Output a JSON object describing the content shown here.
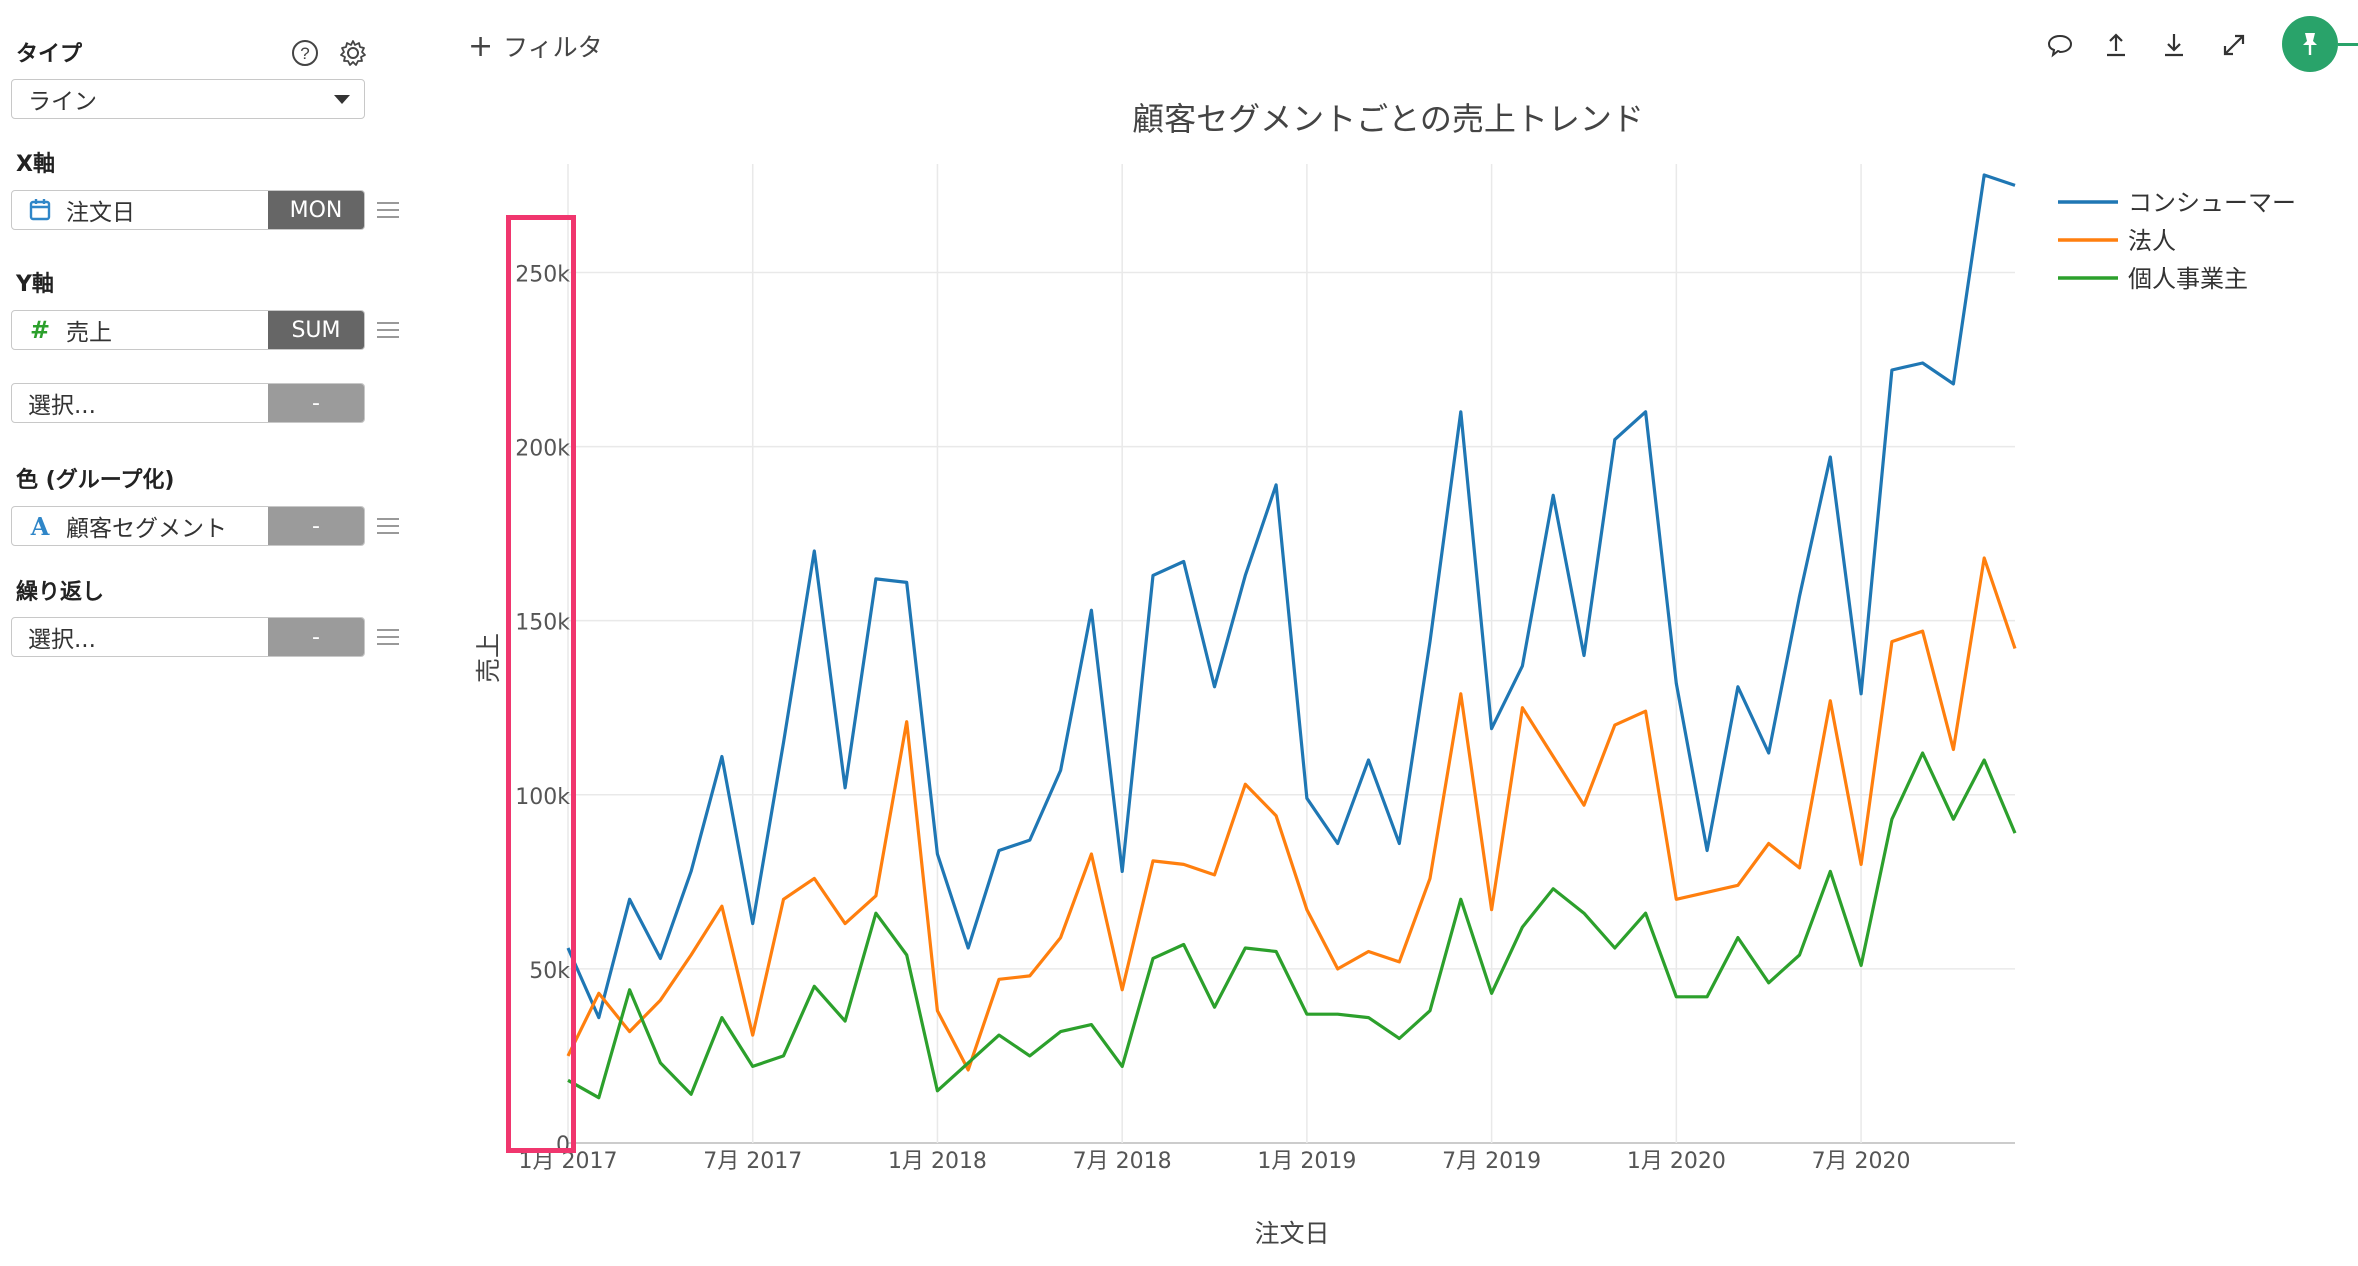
{
  "sidebar": {
    "type_label": "タイプ",
    "type_value": "ライン",
    "x_label": "X軸",
    "x_field": "注文日",
    "x_agg": "MON",
    "y_label": "Y軸",
    "y_field": "売上",
    "y_agg": "SUM",
    "y2_placeholder": "選択...",
    "y2_agg": "-",
    "color_label": "色 (グループ化)",
    "color_field": "顧客セグメント",
    "color_agg": "-",
    "repeat_label": "繰り返し",
    "repeat_placeholder": "選択...",
    "repeat_agg": "-"
  },
  "toolbar": {
    "filter_label": "フィルタ",
    "icons": [
      "comment-icon",
      "upload-icon",
      "download-icon",
      "expand-icon",
      "pin-icon"
    ],
    "pin_color": "#29a36a"
  },
  "chart_data": {
    "type": "line",
    "title": "顧客セグメントごとの売上トレンド",
    "xlabel": "注文日",
    "ylabel": "売上",
    "ylim": [
      0,
      280000
    ],
    "yticks": [
      0,
      50000,
      100000,
      150000,
      200000,
      250000
    ],
    "ytick_labels": [
      "0",
      "50k",
      "100k",
      "150k",
      "200k",
      "250k"
    ],
    "xtick_labels": [
      "1月 2017",
      "7月 2017",
      "1月 2018",
      "7月 2018",
      "1月 2019",
      "7月 2019",
      "1月 2020",
      "7月 2020"
    ],
    "x_start": "2017-01",
    "x_end": "2020-12",
    "grid": true,
    "legend_position": "top-right",
    "series": [
      {
        "name": "コンシューマー",
        "color": "#1f77b4",
        "values": [
          56000,
          36000,
          70000,
          53000,
          78000,
          111000,
          63000,
          115000,
          170000,
          102000,
          162000,
          161000,
          83000,
          56000,
          84000,
          87000,
          107000,
          153000,
          78000,
          163000,
          167000,
          131000,
          163000,
          189000,
          99000,
          86000,
          110000,
          86000,
          144000,
          210000,
          119000,
          137000,
          186000,
          140000,
          202000,
          210000,
          132000,
          84000,
          131000,
          112000,
          157000,
          197000,
          129000,
          222000,
          224000,
          218000,
          278000,
          275000
        ]
      },
      {
        "name": "法人",
        "color": "#ff7f0e",
        "values": [
          25000,
          43000,
          32000,
          41000,
          54000,
          68000,
          31000,
          70000,
          76000,
          63000,
          71000,
          121000,
          38000,
          21000,
          47000,
          48000,
          59000,
          83000,
          44000,
          81000,
          80000,
          77000,
          103000,
          94000,
          67000,
          50000,
          55000,
          52000,
          76000,
          129000,
          67000,
          125000,
          111000,
          97000,
          120000,
          124000,
          70000,
          72000,
          74000,
          86000,
          79000,
          127000,
          80000,
          144000,
          147000,
          113000,
          168000,
          142000
        ]
      },
      {
        "name": "個人事業主",
        "color": "#2ca02c",
        "values": [
          18000,
          13000,
          44000,
          23000,
          14000,
          36000,
          22000,
          25000,
          45000,
          35000,
          66000,
          54000,
          15000,
          23000,
          31000,
          25000,
          32000,
          34000,
          22000,
          53000,
          57000,
          39000,
          56000,
          55000,
          37000,
          37000,
          36000,
          30000,
          38000,
          70000,
          43000,
          62000,
          73000,
          66000,
          56000,
          66000,
          42000,
          42000,
          59000,
          46000,
          54000,
          78000,
          51000,
          93000,
          112000,
          93000,
          110000,
          89000
        ]
      }
    ]
  }
}
